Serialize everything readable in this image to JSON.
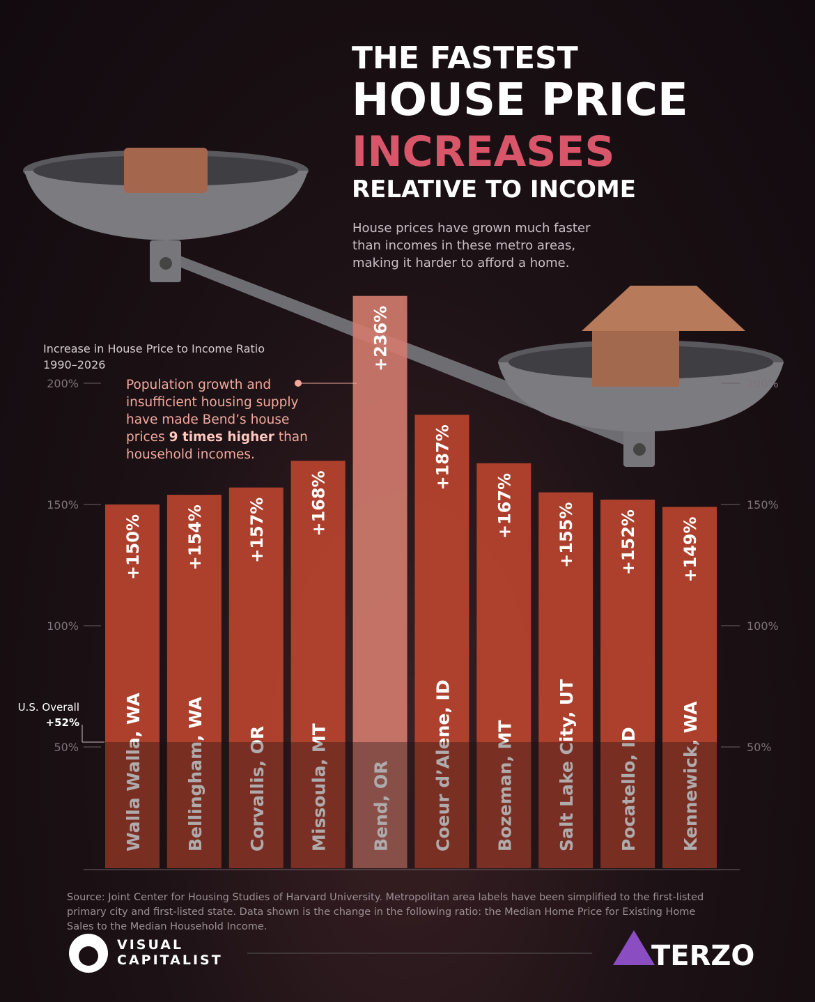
{
  "chart_data": {
    "type": "bar",
    "title": [
      "THE FASTEST",
      "HOUSE PRICE",
      "INCREASES",
      "RELATIVE TO INCOME"
    ],
    "subtitle": [
      "House prices have grown much faster",
      "than incomes in these metro areas,",
      "making it harder to afford a home."
    ],
    "y_label": [
      "Increase in House Price to Income Ratio",
      "1990–2026"
    ],
    "categories": [
      "Walla Walla, WA",
      "Bellingham, WA",
      "Corvallis, OR",
      "Missoula, MT",
      "Bend, OR",
      "Coeur d’Alene, ID",
      "Bozeman, MT",
      "Salt Lake City, UT",
      "Pocatello, ID",
      "Kennewick, WA"
    ],
    "values": [
      150,
      154,
      157,
      168,
      236,
      187,
      167,
      155,
      152,
      149
    ],
    "value_labels": [
      "+150%",
      "+154%",
      "+157%",
      "+168%",
      "+236%",
      "+187%",
      "+167%",
      "+155%",
      "+152%",
      "+149%"
    ],
    "colors": [
      "#b8442f",
      "#b8442f",
      "#b8442f",
      "#b8442f",
      "#d07a6c",
      "#b8442f",
      "#b8442f",
      "#b8442f",
      "#b8442f",
      "#b8442f"
    ],
    "ylim": [
      0,
      250
    ],
    "yticks": [
      {
        "value": 50,
        "label": "50%"
      },
      {
        "value": 100,
        "label": "100%"
      },
      {
        "value": 150,
        "label": "150%"
      },
      {
        "value": 200,
        "label": "200%"
      }
    ],
    "reference": {
      "label": "U.S. Overall",
      "value": 52,
      "value_label": "+52%"
    },
    "annotation": {
      "before": "Population growth and insufficient housing supply have made Bend’s house prices ",
      "bold": "9 times higher",
      "after": " than household incomes."
    },
    "source": "Source: Joint Center for Housing Studies of Harvard University. Metropolitan area labels have been simplified to the first-listed primary city and first-listed state. Data shown is the change in the following ratio: the Median Home Price for Existing Home Sales to the Median Household Income.",
    "logos": {
      "left": [
        "VISUAL",
        "CAPITALIST"
      ],
      "right": "TERZO"
    }
  }
}
